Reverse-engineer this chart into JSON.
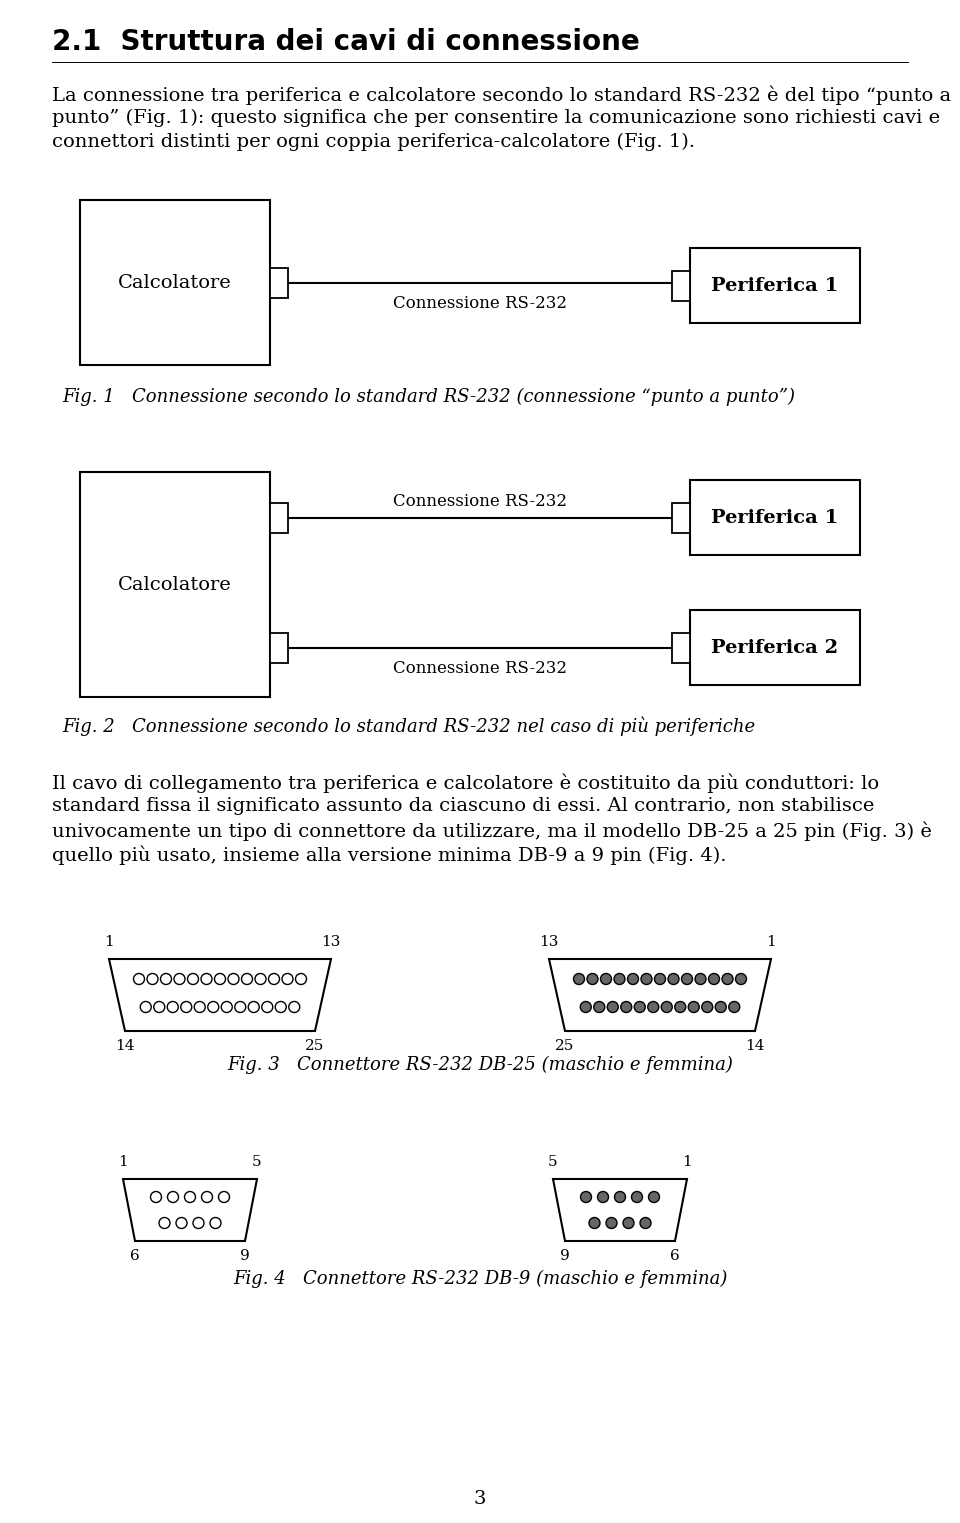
{
  "title": "2.1  Struttura dei cavi di connessione",
  "fig1_caption": "Fig. 1   Connessione secondo lo standard RS-232 (connessione “punto a punto”)",
  "fig2_caption": "Fig. 2   Connessione secondo lo standard RS-232 nel caso di più periferiche",
  "fig3_caption": "Fig. 3   Connettore RS-232 DB-25 (maschio e femmina)",
  "fig4_caption": "Fig. 4   Connettore RS-232 DB-9 (maschio e femmina)",
  "page_num": "3",
  "label_calcolatore": "Calcolatore",
  "label_periferica1": "Periferica 1",
  "label_periferica2": "Periferica 2",
  "label_conn": "Connessione RS-232",
  "bg_color": "#ffffff",
  "text_color": "#000000",
  "para1_lines": [
    "La connessione tra periferica e calcolatore secondo lo standard RS-232 è del tipo “punto a",
    "punto” (Fig. 1): questo significa che per consentire la comunicazione sono richiesti cavi e",
    "connettori distinti per ogni coppia periferica-calcolatore (Fig. 1)."
  ],
  "para2_lines": [
    "Il cavo di collegamento tra periferica e calcolatore è costituito da più conduttori: lo",
    "standard fissa il significato assunto da ciascuno di essi. Al contrario, non stabilisce",
    "univocamente un tipo di connettore da utilizzare, ma il modello DB-25 a 25 pin (Fig. 3) è",
    "quello più usato, insieme alla versione minima DB-9 a 9 pin (Fig. 4)."
  ],
  "title_fontsize": 20,
  "body_fontsize": 14,
  "caption_fontsize": 13,
  "diagram_label_fontsize": 14,
  "diagram_conn_fontsize": 12,
  "pin_label_fontsize": 11
}
